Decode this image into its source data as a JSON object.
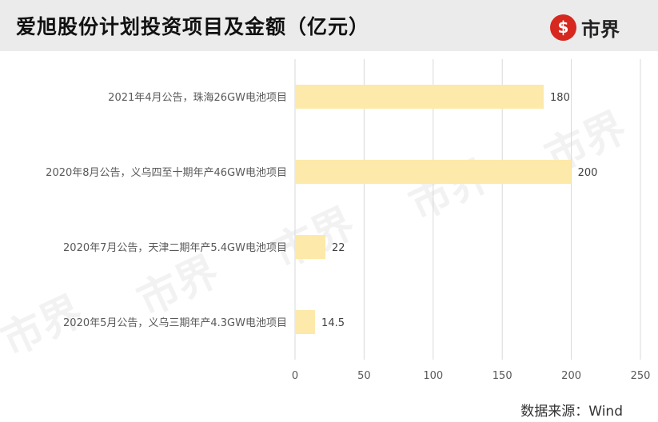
{
  "title": "爱旭股份计划投资项目及金额（亿元）",
  "brand": {
    "name": "市界",
    "logo_icon": "shijie-logo-icon",
    "color": "#d7281f"
  },
  "source": "数据来源：Wind",
  "watermark": "市界",
  "chart_data": {
    "type": "bar",
    "orientation": "horizontal",
    "categories": [
      "2021年4月公告，珠海26GW电池项目",
      "2020年8月公告，义乌四至十期年产46GW电池项目",
      "2020年7月公告，天津二期年产5.4GW电池项目",
      "2020年5月公告，义乌三期年产4.3GW电池项目"
    ],
    "values": [
      180,
      200,
      22,
      14.5
    ],
    "value_labels": [
      "180",
      "200",
      "22",
      "14.5"
    ],
    "xlim": [
      0,
      250
    ],
    "xticks": [
      0,
      50,
      100,
      150,
      200,
      250
    ],
    "bar_color": "#fde9a9",
    "grid": true,
    "xlabel": "",
    "ylabel": ""
  }
}
